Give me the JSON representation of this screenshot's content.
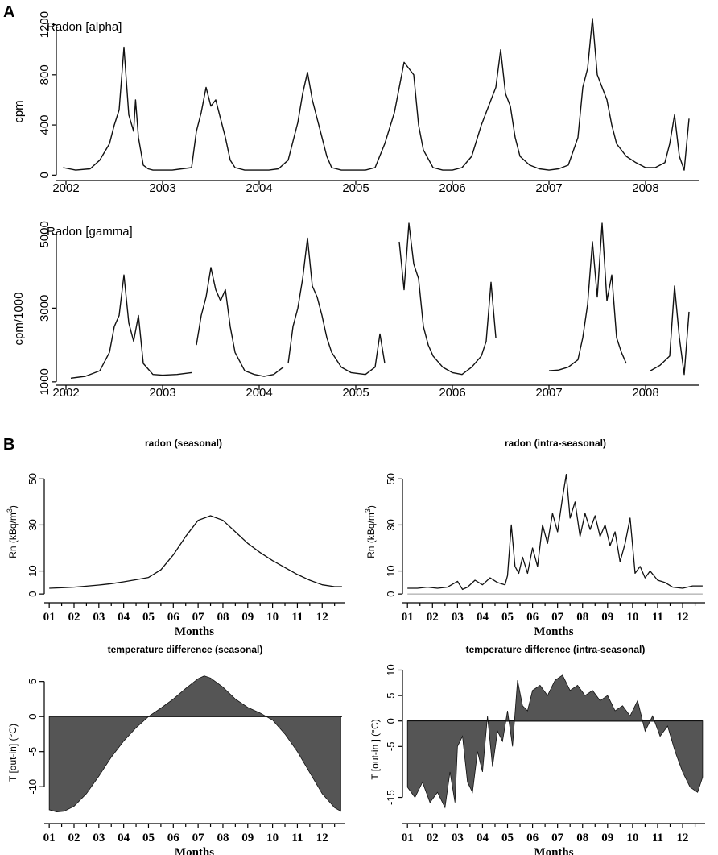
{
  "panel_labels": {
    "a": "A",
    "b": "B"
  },
  "colors": {
    "series_dark": "#111111",
    "fill": "#555555",
    "zero_line": "#999999"
  },
  "chart_data": [
    {
      "id": "alpha",
      "type": "line",
      "series_label": "Radon [alpha]",
      "title": "",
      "xlabel": "",
      "ylabel": "cpm",
      "x_ticks": [
        "2002",
        "2003",
        "2004",
        "2005",
        "2006",
        "2007",
        "2008"
      ],
      "y_ticks": [
        "0",
        "400",
        "800",
        "1200"
      ],
      "y_tick_values": [
        0,
        400,
        800,
        1200
      ],
      "xlim": [
        2001.9,
        2008.55
      ],
      "ylim": [
        -30,
        1300
      ],
      "series": [
        {
          "name": "Radon [alpha]",
          "x": [
            2001.97,
            2002.1,
            2002.25,
            2002.35,
            2002.45,
            2002.5,
            2002.55,
            2002.6,
            2002.65,
            2002.7,
            2002.72,
            2002.75,
            2002.8,
            2002.85,
            2002.9,
            2003.0,
            2003.1,
            2003.2,
            2003.3,
            2003.35,
            2003.4,
            2003.45,
            2003.5,
            2003.55,
            2003.6,
            2003.65,
            2003.7,
            2003.75,
            2003.85,
            2003.95,
            2004.1,
            2004.2,
            2004.3,
            2004.4,
            2004.45,
            2004.5,
            2004.55,
            2004.6,
            2004.65,
            2004.7,
            2004.75,
            2004.85,
            2004.95,
            2005.1,
            2005.2,
            2005.3,
            2005.4,
            2005.45,
            2005.5,
            2005.55,
            2005.6,
            2005.65,
            2005.7,
            2005.8,
            2005.9,
            2006.0,
            2006.1,
            2006.2,
            2006.3,
            2006.4,
            2006.45,
            2006.5,
            2006.55,
            2006.6,
            2006.65,
            2006.7,
            2006.8,
            2006.9,
            2007.0,
            2007.1,
            2007.2,
            2007.3,
            2007.35,
            2007.4,
            2007.45,
            2007.5,
            2007.55,
            2007.6,
            2007.65,
            2007.7,
            2007.8,
            2007.9,
            2008.0,
            2008.1,
            2008.2,
            2008.25,
            2008.3,
            2008.35,
            2008.4,
            2008.45
          ],
          "values": [
            60,
            40,
            50,
            120,
            250,
            400,
            520,
            1020,
            480,
            350,
            600,
            300,
            80,
            50,
            40,
            40,
            40,
            50,
            60,
            350,
            500,
            700,
            550,
            600,
            450,
            300,
            120,
            60,
            40,
            40,
            40,
            50,
            120,
            420,
            650,
            820,
            600,
            450,
            300,
            150,
            60,
            40,
            40,
            40,
            60,
            250,
            500,
            700,
            900,
            850,
            800,
            400,
            200,
            60,
            40,
            40,
            60,
            150,
            400,
            600,
            700,
            1000,
            650,
            550,
            300,
            150,
            80,
            50,
            40,
            50,
            80,
            300,
            700,
            850,
            1250,
            800,
            700,
            600,
            400,
            250,
            150,
            100,
            60,
            60,
            100,
            250,
            480,
            150,
            40,
            450
          ]
        }
      ]
    },
    {
      "id": "gamma",
      "type": "line",
      "series_label": "Radon [gamma]",
      "title": "",
      "xlabel": "",
      "ylabel": "cpm/1000",
      "x_ticks": [
        "2002",
        "2003",
        "2004",
        "2005",
        "2006",
        "2007",
        "2008"
      ],
      "y_ticks": [
        "1000",
        "3000",
        "5000"
      ],
      "y_tick_values": [
        1000,
        3000,
        5000
      ],
      "xlim": [
        2001.9,
        2008.55
      ],
      "ylim": [
        800,
        5500
      ],
      "series": [
        {
          "name": "Radon [gamma] 2002",
          "x": [
            2002.05,
            2002.2,
            2002.35,
            2002.45,
            2002.5,
            2002.55,
            2002.6,
            2002.65,
            2002.7,
            2002.75,
            2002.8,
            2002.9,
            2003.0,
            2003.15,
            2003.3
          ],
          "values": [
            1100,
            1150,
            1300,
            1800,
            2500,
            2800,
            3900,
            2600,
            2100,
            2800,
            1500,
            1200,
            1180,
            1200,
            1250
          ]
        },
        {
          "name": "Radon [gamma] 2003",
          "x": [
            2003.35,
            2003.4,
            2003.45,
            2003.5,
            2003.55,
            2003.6,
            2003.65,
            2003.7,
            2003.75,
            2003.85,
            2003.95,
            2004.05,
            2004.15,
            2004.25
          ],
          "values": [
            2000,
            2800,
            3300,
            4100,
            3500,
            3200,
            3500,
            2500,
            1800,
            1300,
            1200,
            1150,
            1200,
            1400
          ]
        },
        {
          "name": "Radon [gamma] 2004",
          "x": [
            2004.3,
            2004.35,
            2004.4,
            2004.45,
            2004.5,
            2004.55,
            2004.6,
            2004.65,
            2004.7,
            2004.75,
            2004.85,
            2004.95,
            2005.1,
            2005.2,
            2005.25,
            2005.3
          ],
          "values": [
            1500,
            2500,
            3000,
            3800,
            4900,
            3600,
            3300,
            2800,
            2200,
            1800,
            1400,
            1250,
            1200,
            1400,
            2300,
            1500
          ]
        },
        {
          "name": "Radon [gamma] 2005",
          "x": [
            2005.45,
            2005.5,
            2005.55,
            2005.6,
            2005.65,
            2005.7,
            2005.75,
            2005.8,
            2005.9,
            2006.0,
            2006.1,
            2006.2,
            2006.3,
            2006.35,
            2006.4,
            2006.45
          ],
          "values": [
            4800,
            3500,
            5300,
            4200,
            3800,
            2500,
            2000,
            1700,
            1400,
            1250,
            1200,
            1400,
            1700,
            2100,
            3700,
            2200
          ]
        },
        {
          "name": "Radon [gamma] 2007",
          "x": [
            2007.0,
            2007.1,
            2007.2,
            2007.3,
            2007.35,
            2007.4,
            2007.45,
            2007.5,
            2007.55,
            2007.6,
            2007.65,
            2007.7,
            2007.75,
            2007.8
          ],
          "values": [
            1300,
            1320,
            1400,
            1600,
            2200,
            3100,
            4800,
            3300,
            5300,
            3200,
            3900,
            2200,
            1800,
            1500
          ]
        },
        {
          "name": "Radon [gamma] 2008",
          "x": [
            2008.05,
            2008.15,
            2008.25,
            2008.3,
            2008.35,
            2008.4,
            2008.45
          ],
          "values": [
            1300,
            1450,
            1700,
            3600,
            2200,
            1200,
            2900
          ]
        }
      ]
    },
    {
      "id": "radon-seasonal",
      "type": "line",
      "title": "radon (seasonal)",
      "xlabel": "Months",
      "ylabel": "Rn (kBq/m³)",
      "ylabel_main": "Rn (kBq/m",
      "ylabel_sup": "3",
      "ylabel_tail": ")",
      "x_ticks": [
        "01",
        "02",
        "03",
        "04",
        "05",
        "06",
        "07",
        "08",
        "09",
        "10",
        "11",
        "12"
      ],
      "y_ticks": [
        "0",
        "10",
        "30",
        "50"
      ],
      "y_tick_values": [
        0,
        10,
        30,
        50
      ],
      "xlim": [
        0.8,
        12.9
      ],
      "ylim": [
        -1,
        62
      ],
      "series": [
        {
          "name": "radon",
          "x": [
            1.0,
            1.5,
            2.0,
            2.5,
            3.0,
            3.5,
            4.0,
            4.5,
            5.0,
            5.5,
            6.0,
            6.5,
            7.0,
            7.5,
            8.0,
            8.5,
            9.0,
            9.5,
            10.0,
            10.5,
            11.0,
            11.5,
            12.0,
            12.5,
            12.8
          ],
          "values": [
            2.5,
            2.7,
            3.0,
            3.4,
            3.9,
            4.5,
            5.3,
            6.2,
            7.2,
            10.5,
            17,
            25,
            32,
            34,
            32,
            27,
            22,
            18,
            14.5,
            11.5,
            8.5,
            6,
            4,
            3.2,
            3.2
          ]
        }
      ]
    },
    {
      "id": "radon-intra",
      "type": "line",
      "title": "radon (intra-seasonal)",
      "xlabel": "Months",
      "ylabel": "Rn (kBq/m³)",
      "ylabel_main": "Rn (kBq/m",
      "ylabel_sup": "3",
      "ylabel_tail": ")",
      "x_ticks": [
        "01",
        "02",
        "03",
        "04",
        "05",
        "06",
        "07",
        "08",
        "09",
        "10",
        "11",
        "12"
      ],
      "y_ticks": [
        "0",
        "10",
        "30",
        "50"
      ],
      "y_tick_values": [
        0,
        10,
        30,
        50
      ],
      "xlim": [
        0.8,
        12.9
      ],
      "ylim": [
        -1,
        62
      ],
      "series": [
        {
          "name": "radon",
          "x": [
            1.0,
            1.4,
            1.8,
            2.2,
            2.6,
            3.0,
            3.2,
            3.4,
            3.7,
            4.0,
            4.3,
            4.6,
            4.9,
            5.0,
            5.15,
            5.3,
            5.45,
            5.6,
            5.8,
            6.0,
            6.2,
            6.4,
            6.6,
            6.8,
            7.0,
            7.2,
            7.35,
            7.5,
            7.7,
            7.9,
            8.1,
            8.3,
            8.5,
            8.7,
            8.9,
            9.1,
            9.3,
            9.5,
            9.7,
            9.9,
            10.1,
            10.3,
            10.5,
            10.7,
            11.0,
            11.3,
            11.6,
            12.0,
            12.4,
            12.8
          ],
          "values": [
            2.5,
            2.5,
            3.0,
            2.5,
            3.0,
            5.5,
            2.0,
            3.0,
            6.0,
            4.0,
            7.0,
            5.0,
            4.0,
            8.0,
            30.0,
            12.0,
            9.0,
            16.0,
            9.0,
            20.0,
            12.0,
            30.0,
            22.0,
            35.0,
            27.0,
            42.0,
            52.0,
            33.0,
            40.0,
            25.0,
            35.0,
            28.0,
            34.0,
            25.0,
            30.0,
            21.0,
            27.0,
            14.0,
            22.0,
            33.0,
            9.0,
            12.0,
            7.0,
            10.0,
            6.0,
            5.0,
            3.0,
            2.5,
            3.5,
            3.5
          ]
        }
      ]
    },
    {
      "id": "temp-seasonal",
      "type": "area",
      "title": "temperature difference (seasonal)",
      "xlabel": "Months",
      "ylabel": "T [out-in] (°C)",
      "x_ticks": [
        "01",
        "02",
        "03",
        "04",
        "05",
        "06",
        "07",
        "08",
        "09",
        "10",
        "11",
        "12"
      ],
      "y_ticks": [
        "-10",
        "-5",
        "0",
        "5"
      ],
      "y_tick_values": [
        -10,
        -5,
        0,
        5
      ],
      "xlim": [
        0.8,
        12.9
      ],
      "ylim": [
        -14.8,
        6.8
      ],
      "series": [
        {
          "name": "temperature difference",
          "x": [
            1.0,
            1.3,
            1.6,
            2.0,
            2.5,
            3.0,
            3.5,
            4.0,
            4.5,
            5.0,
            5.5,
            6.0,
            6.5,
            7.0,
            7.25,
            7.5,
            8.0,
            8.5,
            9.0,
            9.5,
            10.0,
            10.5,
            11.0,
            11.5,
            12.0,
            12.5,
            12.75
          ],
          "values": [
            -13.3,
            -13.6,
            -13.5,
            -12.8,
            -11.0,
            -8.5,
            -5.8,
            -3.5,
            -1.6,
            0.0,
            1.2,
            2.5,
            4.0,
            5.4,
            5.8,
            5.5,
            4.2,
            2.5,
            1.3,
            0.5,
            -0.5,
            -2.5,
            -5.0,
            -8.0,
            -11.0,
            -13.0,
            -13.5
          ]
        }
      ]
    },
    {
      "id": "temp-intra",
      "type": "area",
      "title": "temperature difference  (intra-seasonal)",
      "xlabel": "Months",
      "ylabel": "T [out-in ] (°C)",
      "x_ticks": [
        "01",
        "02",
        "03",
        "04",
        "05",
        "06",
        "07",
        "08",
        "09",
        "10",
        "11",
        "12"
      ],
      "y_ticks": [
        "-15",
        "-5",
        "0",
        "5",
        "10"
      ],
      "y_tick_values": [
        -15,
        -5,
        0,
        5,
        10
      ],
      "xlim": [
        0.8,
        12.9
      ],
      "ylim": [
        -19.5,
        11.5
      ],
      "series": [
        {
          "name": "temperature difference",
          "x": [
            1.0,
            1.3,
            1.6,
            1.9,
            2.2,
            2.5,
            2.7,
            2.9,
            3.0,
            3.2,
            3.4,
            3.6,
            3.8,
            4.0,
            4.2,
            4.4,
            4.6,
            4.8,
            5.0,
            5.2,
            5.4,
            5.6,
            5.8,
            6.0,
            6.3,
            6.6,
            6.9,
            7.2,
            7.5,
            7.8,
            8.1,
            8.4,
            8.7,
            9.0,
            9.3,
            9.6,
            9.9,
            10.2,
            10.5,
            10.8,
            11.1,
            11.4,
            11.7,
            12.0,
            12.3,
            12.6,
            12.8
          ],
          "values": [
            -13,
            -15,
            -12,
            -16,
            -14,
            -17,
            -10,
            -16,
            -5,
            -3,
            -12,
            -14,
            -6,
            -10,
            1,
            -9,
            -2,
            -4,
            2,
            -5,
            8,
            3,
            2,
            6,
            7,
            5,
            8,
            9,
            6,
            7,
            5,
            6,
            4,
            5,
            2,
            3,
            1,
            4,
            -2,
            1,
            -3,
            -1,
            -6,
            -10,
            -13,
            -14,
            -11
          ]
        }
      ]
    }
  ]
}
